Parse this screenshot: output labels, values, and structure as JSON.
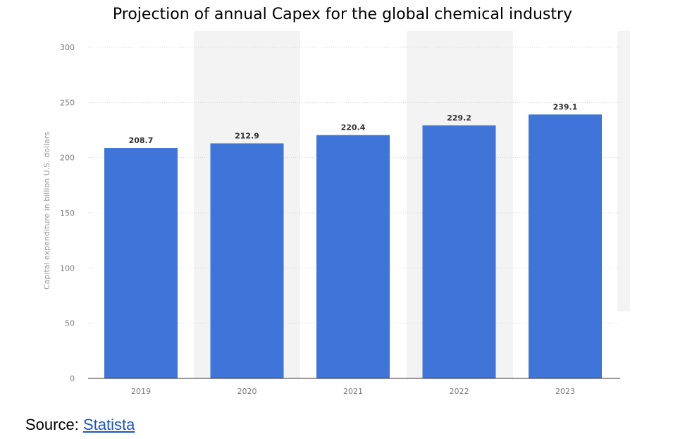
{
  "chart_data": {
    "type": "bar",
    "title": "Projection of annual Capex for the global chemical industry",
    "xlabel": "",
    "ylabel": "Capital expenditure in billion U.S. dollars",
    "categories": [
      "2019",
      "2020",
      "2021",
      "2022",
      "2023"
    ],
    "values": [
      208.7,
      212.9,
      220.4,
      229.2,
      239.1
    ],
    "value_labels": [
      "208.7",
      "212.9",
      "220.4",
      "229.2",
      "239.1"
    ],
    "ylim": [
      0,
      300
    ],
    "yticks": [
      "0",
      "50",
      "100",
      "150",
      "200",
      "250",
      "300"
    ],
    "grid": true,
    "legend": "none"
  },
  "source": {
    "prefix": "Source: ",
    "link": "Statista"
  },
  "colors": {
    "bar": "#3f74d8",
    "grid": "#d9d9d9",
    "band": "#f3f3f3",
    "axis": "#333333"
  }
}
